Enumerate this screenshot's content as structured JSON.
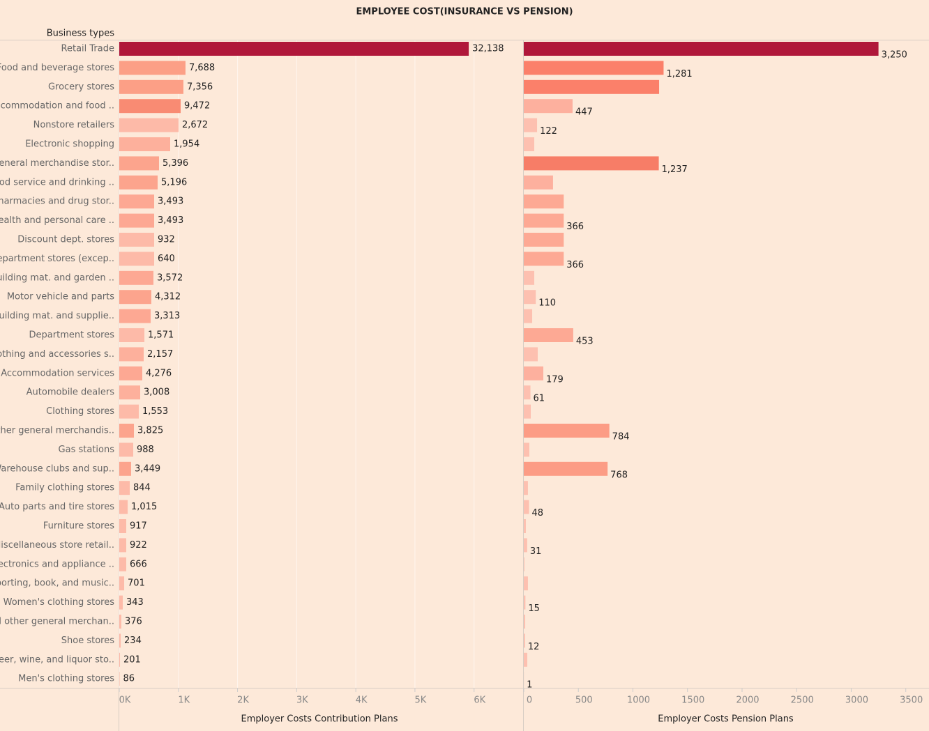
{
  "chart_data": {
    "type": "bar",
    "orientation": "horizontal",
    "title": "EMPLOYEE COST(INSURANCE VS PENSION)",
    "category_label": "Business types",
    "categories": [
      "Retail Trade",
      "Food and beverage stores",
      "Grocery stores",
      "Accommodation and food ..",
      "Nonstore retailers",
      "Electronic shopping",
      "General merchandise stor..",
      "Food service and drinking ..",
      "Pharmacies and drug stor..",
      "Health and personal care ..",
      "Discount dept. stores",
      "Department stores (excep..",
      "Building mat. and garden ..",
      "Motor vehicle and parts",
      "Building mat. and supplie..",
      "Department stores",
      "Clothing and accessories s..",
      "Accommodation services",
      "Automobile dealers",
      "Clothing stores",
      "Other general merchandis..",
      "Gas stations",
      "Warehouse clubs and sup..",
      "Family clothing stores",
      "Auto parts and tire stores",
      "Furniture stores",
      "Miscellaneous store retail..",
      "Electronics and appliance ..",
      "Sporting, book, and  music..",
      "Women's clothing stores",
      "All other general merchan..",
      "Shoe stores",
      "Beer, wine, and liquor sto..",
      "Men's clothing stores"
    ],
    "panels": [
      {
        "x_label": "Employer Costs Contribution Plans",
        "xlim": [
          0,
          6770
        ],
        "xticks": [
          {
            "value": 0,
            "label": "0K"
          },
          {
            "value": 1000,
            "label": "1K"
          },
          {
            "value": 2000,
            "label": "2K"
          },
          {
            "value": 3000,
            "label": "3K"
          },
          {
            "value": 4000,
            "label": "4K"
          },
          {
            "value": 5000,
            "label": "5K"
          },
          {
            "value": 6000,
            "label": "6K"
          }
        ],
        "grid": true,
        "values": [
          5910,
          1120,
          1085,
          1038,
          1002,
          861,
          672,
          649,
          590,
          590,
          590,
          590,
          578,
          542,
          531,
          425,
          413,
          389,
          354,
          330,
          248,
          236,
          200,
          177,
          142,
          118,
          118,
          118,
          83,
          59,
          35,
          24,
          12,
          6
        ],
        "data_labels": [
          "32,138",
          "7,688",
          "7,356",
          "9,472",
          "2,672",
          "1,954",
          "5,396",
          "5,196",
          "3,493",
          "3,493",
          "932",
          "640",
          "3,572",
          "4,312",
          "3,313",
          "1,571",
          "2,157",
          "4,276",
          "3,008",
          "1,553",
          "3,825",
          "988",
          "3,449",
          "844",
          "1,015",
          "917",
          "922",
          "666",
          "701",
          "343",
          "376",
          "234",
          "201",
          "86"
        ],
        "colors": [
          "#b0173a",
          "#fc9f86",
          "#fc9f86",
          "#f98b73",
          "#fdbaa8",
          "#fdb09c",
          "#fca48d",
          "#fca48d",
          "#fda893",
          "#fda893",
          "#fdbaa8",
          "#fdbaa8",
          "#fda893",
          "#fca48d",
          "#fda893",
          "#fdbaa8",
          "#fdb09c",
          "#fda893",
          "#fdb09c",
          "#fdbaa8",
          "#fca48d",
          "#fdbaa8",
          "#fca48d",
          "#fdbaa8",
          "#fdbaa8",
          "#fdbaa8",
          "#fdbaa8",
          "#fdbaa8",
          "#fdbaa8",
          "#fdbaa8",
          "#fdbaa8",
          "#fdbaa8",
          "#fdbaa8",
          "#fdbaa8"
        ]
      },
      {
        "x_label": "Employer Costs Pension Plans",
        "xlim": [
          0,
          3700
        ],
        "xticks": [
          0,
          500,
          1000,
          1500,
          2000,
          2500,
          3000,
          3500
        ],
        "grid": false,
        "values": [
          3250,
          1281,
          1240,
          447,
          122,
          96,
          1237,
          268,
          366,
          366,
          366,
          366,
          96,
          110,
          77,
          453,
          128,
          179,
          61,
          64,
          784,
          51,
          768,
          38,
          48,
          19,
          31,
          6,
          38,
          15,
          13,
          12,
          32,
          1
        ],
        "value_labels": [
          "3,250",
          "1,281",
          null,
          "447",
          "122",
          null,
          "1,237",
          null,
          null,
          "366",
          null,
          "366",
          null,
          "110",
          null,
          "453",
          null,
          "179",
          "61",
          null,
          "784",
          null,
          "768",
          null,
          "48",
          null,
          "31",
          null,
          null,
          "15",
          null,
          "12",
          null,
          "1"
        ],
        "colors": [
          "#b0173a",
          "#fb806a",
          "#fb806a",
          "#fdb09e",
          "#fdc0b0",
          "#fdc0b0",
          "#f77d67",
          "#fdb09e",
          "#fda994",
          "#fda994",
          "#fda994",
          "#fda994",
          "#fdc0b0",
          "#fdc0b0",
          "#fdc0b0",
          "#fda994",
          "#fdc0b0",
          "#fdb09e",
          "#fdc0b0",
          "#fdc0b0",
          "#fc9c85",
          "#fdc0b0",
          "#fc9c85",
          "#fdc0b0",
          "#fdc0b0",
          "#fdc0b0",
          "#fdc0b0",
          "#fdc0b0",
          "#fdc0b0",
          "#fdc0b0",
          "#fdc0b0",
          "#fdc0b0",
          "#fdc0b0",
          "#fdc0b0"
        ]
      }
    ]
  }
}
